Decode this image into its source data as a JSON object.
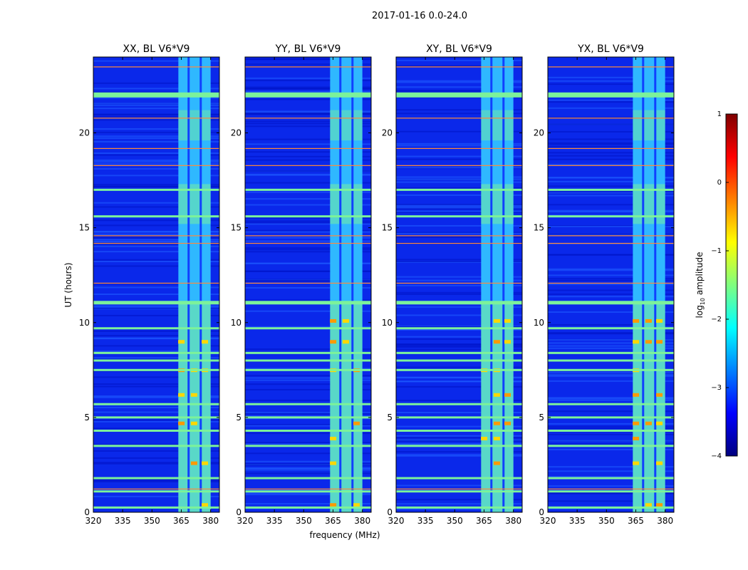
{
  "chart_data": {
    "type": "heatmap",
    "title": "2017-01-16 0.0-24.0",
    "xlabel": "frequency (MHz)",
    "ylabel": "UT (hours)",
    "colorbar_label": "log10 amplitude",
    "colorbar_label_base": "log",
    "colorbar_label_subscript": "10",
    "colorbar_label_rest": " amplitude",
    "colorbar_range": [
      -4,
      1
    ],
    "colorbar_ticks": [
      "1",
      "0",
      "−1",
      "−2",
      "−3",
      "−4"
    ],
    "colormap": "jet",
    "x_ticks": [
      "320",
      "335",
      "350",
      "365",
      "380"
    ],
    "x_range": [
      320,
      384.5
    ],
    "y_ticks": [
      "0",
      "5",
      "10",
      "15",
      "20"
    ],
    "y_range": [
      0,
      24
    ],
    "panels": [
      {
        "title": "XX, BL V6*V9"
      },
      {
        "title": "YY, BL V6*V9"
      },
      {
        "title": "XY, BL V6*V9"
      },
      {
        "title": "YX, BL V6*V9"
      }
    ],
    "occupied_band_mhz": [
      363.5,
      380
    ],
    "band_channels_mhz": [
      365,
      371.5,
      377
    ],
    "rfi_full_band_hours": [
      0.25,
      1.1,
      1.8,
      3.5,
      4.3,
      5.0,
      5.7,
      7.5,
      8.0,
      8.4,
      9.7,
      11.05,
      15.6,
      17.0,
      22.0
    ],
    "rfi_orange_line_hours": [
      1.25,
      12.1,
      14.2,
      14.6,
      18.3,
      19.2,
      20.8,
      23.5
    ]
  }
}
